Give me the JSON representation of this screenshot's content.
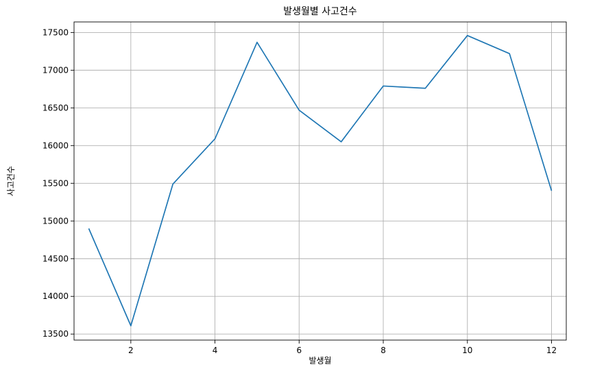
{
  "chart_data": {
    "type": "line",
    "title": "발생월별 사고건수",
    "xlabel": "발생월",
    "ylabel": "사고건수",
    "grid": true,
    "legend": "none",
    "xlim": [
      0.65,
      12.35
    ],
    "ylim": [
      13420,
      17640
    ],
    "x_ticks": [
      2,
      4,
      6,
      8,
      10,
      12
    ],
    "y_ticks": [
      13500,
      14000,
      14500,
      15000,
      15500,
      16000,
      16500,
      17000,
      17500
    ],
    "x": [
      1,
      2,
      3,
      4,
      5,
      6,
      7,
      8,
      9,
      10,
      11,
      12
    ],
    "series": [
      {
        "color": "#1f77b4",
        "values": [
          14900,
          13610,
          15490,
          16090,
          17370,
          16470,
          16050,
          16790,
          16760,
          17460,
          17220,
          15400
        ]
      }
    ]
  }
}
